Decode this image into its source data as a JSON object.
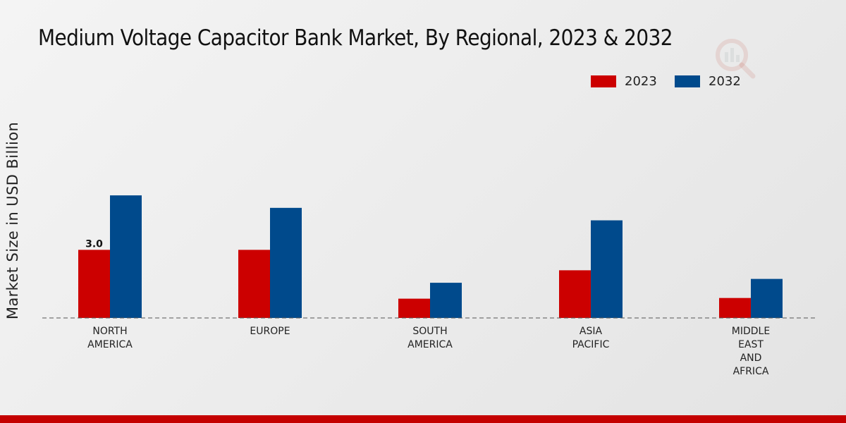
{
  "chart_data": {
    "type": "bar",
    "title": "Medium Voltage Capacitor Bank Market, By Regional, 2023 & 2032",
    "xlabel": "",
    "ylabel": "Market Size in USD Billion",
    "ylim": [
      0,
      8
    ],
    "grid": false,
    "legend_position": "top-right",
    "categories": [
      "NORTH\nAMERICA",
      "EUROPE",
      "SOUTH\nAMERICA",
      "ASIA\nPACIFIC",
      "MIDDLE\nEAST\nAND\nAFRICA"
    ],
    "series": [
      {
        "name": "2023",
        "color": "#cc0000",
        "values": [
          3.0,
          3.0,
          0.85,
          2.1,
          0.88
        ]
      },
      {
        "name": "2032",
        "color": "#004a8c",
        "values": [
          5.4,
          4.85,
          1.55,
          4.3,
          1.72
        ]
      }
    ],
    "annotations": [
      {
        "series": "2023",
        "category_index": 0,
        "text": "3.0"
      }
    ]
  },
  "colors": {
    "accent_bar": "#c40000",
    "axis_line": "#555555"
  }
}
